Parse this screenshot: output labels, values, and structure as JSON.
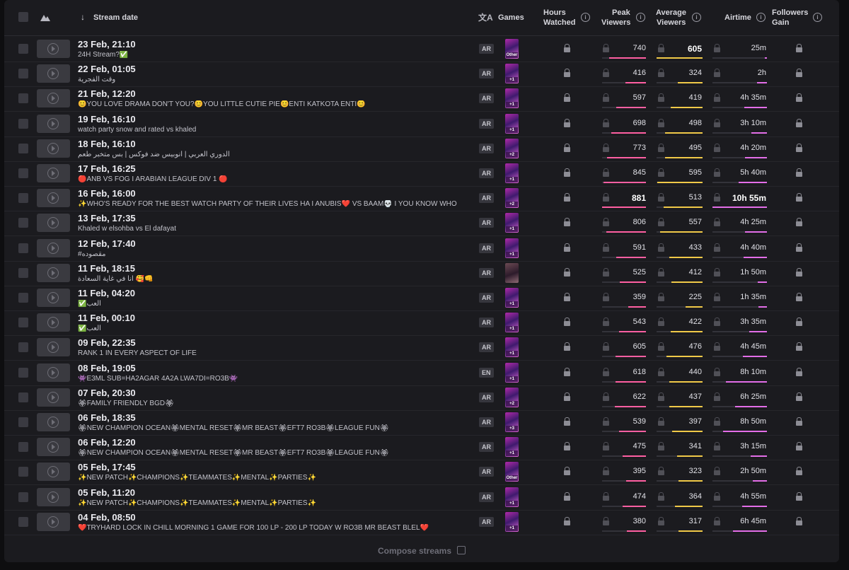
{
  "header": {
    "stream_date": "Stream date",
    "games": "Games",
    "hours_watched": [
      "Hours",
      "Watched"
    ],
    "peak_viewers": [
      "Peak",
      "Viewers"
    ],
    "average_viewers": [
      "Average",
      "Viewers"
    ],
    "airtime": "Airtime",
    "followers_gain": [
      "Followers",
      "Gain"
    ]
  },
  "colors": {
    "peak": "#ff5fa2",
    "average": "#f0c948",
    "airtime": "#e36ee8"
  },
  "rows": [
    {
      "date": "23 Feb, 21:10",
      "title": "24H Stream?✅",
      "lang": "AR",
      "game_badge": "Other",
      "peak": "740",
      "avg": "605",
      "airtime": "25m",
      "peak_frac": 0.84,
      "avg_frac": 1.0,
      "air_frac": 0.04,
      "avg_bold": true
    },
    {
      "date": "22 Feb, 01:05",
      "title": "وقت الفجرية",
      "lang": "AR",
      "game_badge": "+1",
      "peak": "416",
      "avg": "324",
      "airtime": "2h",
      "peak_frac": 0.47,
      "avg_frac": 0.54,
      "air_frac": 0.18
    },
    {
      "date": "21 Feb, 12:20",
      "title": "😊YOU LOVE DRAMA DON'T YOU?😊YOU LITTLE CUTIE PIE😊ENTI KATKOTA ENTI😊",
      "lang": "AR",
      "game_badge": "+1",
      "peak": "597",
      "avg": "419",
      "airtime": "4h 35m",
      "peak_frac": 0.68,
      "avg_frac": 0.69,
      "air_frac": 0.42
    },
    {
      "date": "19 Feb, 16:10",
      "title": "watch party snow and rated vs khaled",
      "lang": "AR",
      "game_badge": "+1",
      "peak": "698",
      "avg": "498",
      "airtime": "3h 10m",
      "peak_frac": 0.79,
      "avg_frac": 0.82,
      "air_frac": 0.29
    },
    {
      "date": "18 Feb, 16:10",
      "title": "الدوري العربي | أنوبيس ضد فوكس | بس متخبر طعم",
      "lang": "AR",
      "game_badge": "+2",
      "peak": "773",
      "avg": "495",
      "airtime": "4h 20m",
      "peak_frac": 0.88,
      "avg_frac": 0.82,
      "air_frac": 0.4
    },
    {
      "date": "17 Feb, 16:25",
      "title": "🔴ANB VS FOG I ARABIAN LEAGUE DIV 1 🔴",
      "lang": "AR",
      "game_badge": "+1",
      "peak": "845",
      "avg": "595",
      "airtime": "5h 40m",
      "peak_frac": 0.96,
      "avg_frac": 0.98,
      "air_frac": 0.52
    },
    {
      "date": "16 Feb, 16:00",
      "title": "✨WHO'S READY FOR THE BEST WATCH PARTY OF THEIR LIVES HA I ANUBIS❤️ VS BAAM💀 I YOU KNOW WHO",
      "lang": "AR",
      "game_badge": "+2",
      "peak": "881",
      "avg": "513",
      "airtime": "10h 55m",
      "peak_frac": 1.0,
      "avg_frac": 0.85,
      "air_frac": 1.0,
      "peak_bold": true,
      "air_bold": true
    },
    {
      "date": "13 Feb, 17:35",
      "title": "Khaled w elsohba vs El dafayat",
      "lang": "AR",
      "game_badge": "+1",
      "peak": "806",
      "avg": "557",
      "airtime": "4h 25m",
      "peak_frac": 0.91,
      "avg_frac": 0.92,
      "air_frac": 0.4
    },
    {
      "date": "12 Feb, 17:40",
      "title": "#مقصوده",
      "lang": "AR",
      "game_badge": "+1",
      "peak": "591",
      "avg": "433",
      "airtime": "4h 40m",
      "peak_frac": 0.67,
      "avg_frac": 0.72,
      "air_frac": 0.43
    },
    {
      "date": "11 Feb, 18:15",
      "title": "انا في غاية السعادة 🥰👊",
      "lang": "AR",
      "game_badge": "",
      "peak": "525",
      "avg": "412",
      "airtime": "1h 50m",
      "peak_frac": 0.6,
      "avg_frac": 0.68,
      "air_frac": 0.17,
      "alt": true
    },
    {
      "date": "11 Feb, 04:20",
      "title": "✅العب",
      "lang": "AR",
      "game_badge": "+1",
      "peak": "359",
      "avg": "225",
      "airtime": "1h 35m",
      "peak_frac": 0.41,
      "avg_frac": 0.37,
      "air_frac": 0.15
    },
    {
      "date": "11 Feb, 00:10",
      "title": "✅العب",
      "lang": "AR",
      "game_badge": "+1",
      "peak": "543",
      "avg": "422",
      "airtime": "3h 35m",
      "peak_frac": 0.62,
      "avg_frac": 0.7,
      "air_frac": 0.33
    },
    {
      "date": "09 Feb, 22:35",
      "title": "RANK 1 IN EVERY ASPECT OF LIFE",
      "lang": "AR",
      "game_badge": "+1",
      "peak": "605",
      "avg": "476",
      "airtime": "4h 45m",
      "peak_frac": 0.69,
      "avg_frac": 0.79,
      "air_frac": 0.44
    },
    {
      "date": "08 Feb, 19:05",
      "title": "👾E3ML SUB=HA2AGAR 4A2A LWA7DI=RO3B👾",
      "lang": "EN",
      "game_badge": "+1",
      "peak": "618",
      "avg": "440",
      "airtime": "8h 10m",
      "peak_frac": 0.7,
      "avg_frac": 0.73,
      "air_frac": 0.75
    },
    {
      "date": "07 Feb, 20:30",
      "title": "🏵FAMILY FRIENDLY BGD🏵",
      "lang": "AR",
      "game_badge": "+2",
      "peak": "622",
      "avg": "437",
      "airtime": "6h 25m",
      "peak_frac": 0.71,
      "avg_frac": 0.72,
      "air_frac": 0.59
    },
    {
      "date": "06 Feb, 18:35",
      "title": "🏵NEW CHAMPION OCEAN🏵MENTAL RESET🏵MR BEAST🏵EFT7 RO3B🏵LEAGUE FUN🏵",
      "lang": "AR",
      "game_badge": "+3",
      "peak": "539",
      "avg": "397",
      "airtime": "8h 50m",
      "peak_frac": 0.61,
      "avg_frac": 0.66,
      "air_frac": 0.81
    },
    {
      "date": "06 Feb, 12:20",
      "title": "🏵NEW CHAMPION OCEAN🏵MENTAL RESET🏵MR BEAST🏵EFT7 RO3B🏵LEAGUE FUN🏵",
      "lang": "AR",
      "game_badge": "+1",
      "peak": "475",
      "avg": "341",
      "airtime": "3h 15m",
      "peak_frac": 0.54,
      "avg_frac": 0.56,
      "air_frac": 0.3
    },
    {
      "date": "05 Feb, 17:45",
      "title": "✨NEW PATCH✨CHAMPIONS✨TEAMMATES✨MENTAL✨PARTIES✨",
      "lang": "AR",
      "game_badge": "Other",
      "peak": "395",
      "avg": "323",
      "airtime": "2h 50m",
      "peak_frac": 0.45,
      "avg_frac": 0.53,
      "air_frac": 0.26
    },
    {
      "date": "05 Feb, 11:20",
      "title": "✨NEW PATCH✨CHAMPIONS✨TEAMMATES✨MENTAL✨PARTIES✨",
      "lang": "AR",
      "game_badge": "+1",
      "peak": "474",
      "avg": "364",
      "airtime": "4h 55m",
      "peak_frac": 0.54,
      "avg_frac": 0.6,
      "air_frac": 0.45
    },
    {
      "date": "04 Feb, 08:50",
      "title": "❤️TRYHARD LOCK IN CHILL MORNING 1 GAME FOR 100 LP - 200 LP TODAY W RO3B MR BEAST BLEL❤️",
      "lang": "AR",
      "game_badge": "+1",
      "peak": "380",
      "avg": "317",
      "airtime": "6h 45m",
      "peak_frac": 0.43,
      "avg_frac": 0.52,
      "air_frac": 0.62
    }
  ],
  "footer": {
    "compose": "Compose streams"
  }
}
